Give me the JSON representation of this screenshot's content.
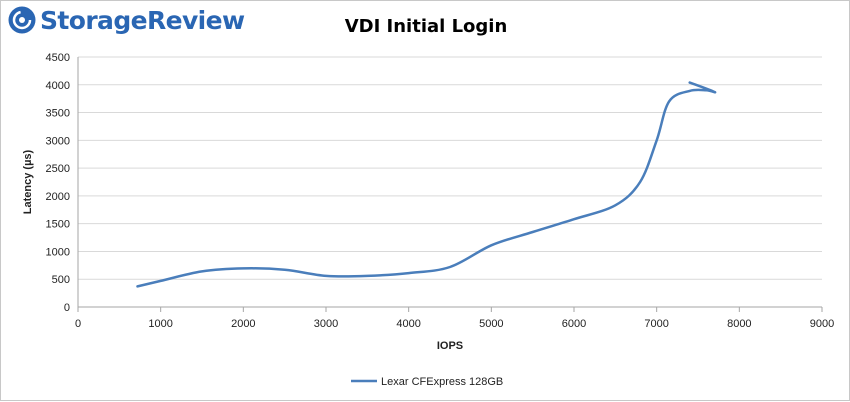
{
  "brand": {
    "name": "StorageReview",
    "color": "#2a66b3"
  },
  "chart_data": {
    "type": "line",
    "title": "VDI Initial Login",
    "xlabel": "IOPS",
    "ylabel": "Latency (µs)",
    "xlim": [
      0,
      9000
    ],
    "ylim": [
      0,
      4500
    ],
    "x_ticks": [
      0,
      1000,
      2000,
      3000,
      4000,
      5000,
      6000,
      7000,
      8000,
      9000
    ],
    "y_ticks": [
      0,
      500,
      1000,
      1500,
      2000,
      2500,
      3000,
      3500,
      4000,
      4500
    ],
    "grid": "horizontal",
    "legend_position": "bottom",
    "series": [
      {
        "name": "Lexar CFExpress 128GB",
        "color": "#4a7ebb",
        "points": [
          [
            720,
            370
          ],
          [
            1000,
            470
          ],
          [
            1500,
            640
          ],
          [
            2000,
            695
          ],
          [
            2500,
            670
          ],
          [
            3000,
            560
          ],
          [
            3500,
            560
          ],
          [
            4000,
            610
          ],
          [
            4500,
            720
          ],
          [
            5000,
            1110
          ],
          [
            5500,
            1350
          ],
          [
            6000,
            1580
          ],
          [
            6500,
            1830
          ],
          [
            6800,
            2250
          ],
          [
            7000,
            3000
          ],
          [
            7150,
            3700
          ],
          [
            7400,
            3890
          ],
          [
            7600,
            3900
          ],
          [
            7700,
            3870
          ],
          [
            7400,
            4040
          ]
        ]
      }
    ]
  }
}
